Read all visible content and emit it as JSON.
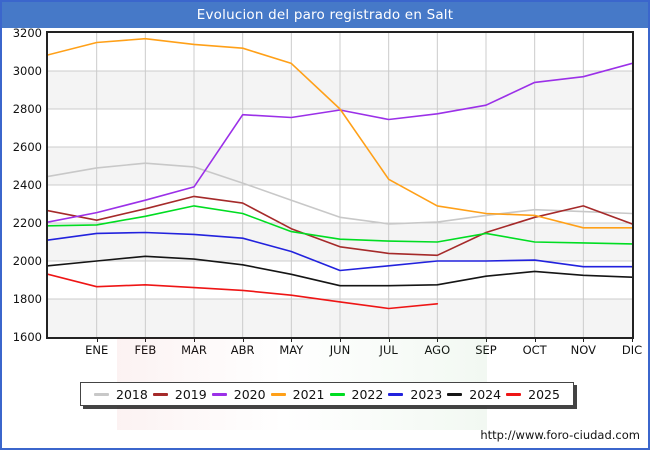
{
  "title": "Evolucion del paro registrado en Salt",
  "footer_url": "http://www.foro-ciudad.com",
  "colors": {
    "header_bg": "#4679c8",
    "frame_border": "#3b66cc",
    "plot_border": "#222222",
    "grid": "#cccccc",
    "band": "#f4f4f4",
    "axis_text": "#111111"
  },
  "chart_data": {
    "type": "line",
    "title": "Evolucion del paro registrado en Salt",
    "xlabel": "",
    "ylabel": "",
    "ylim": [
      1600,
      3200
    ],
    "grid": true,
    "legend_position": "bottom",
    "y_ticks": [
      3200,
      3000,
      2800,
      2600,
      2400,
      2200,
      2000,
      1800,
      1600
    ],
    "x_tick_labels": [
      "ENE",
      "FEB",
      "MAR",
      "ABR",
      "MAY",
      "JUN",
      "JUL",
      "AGO",
      "SEP",
      "OCT",
      "NOV",
      "DIC"
    ],
    "x_axis_note": "first value of each series is drawn at the left plot edge, following values at each month tick",
    "series": [
      {
        "name": "2018",
        "color": "#c8c8c8",
        "values": [
          2445,
          2490,
          2515,
          2495,
          2410,
          2320,
          2230,
          2195,
          2205,
          2240,
          2270,
          2260,
          2250
        ]
      },
      {
        "name": "2019",
        "color": "#a52a2a",
        "values": [
          2265,
          2215,
          2275,
          2340,
          2305,
          2170,
          2075,
          2040,
          2030,
          2150,
          2230,
          2290,
          2195
        ]
      },
      {
        "name": "2020",
        "color": "#9b30e8",
        "values": [
          2205,
          2255,
          2320,
          2390,
          2770,
          2755,
          2795,
          2745,
          2775,
          2820,
          2940,
          2970,
          3040
        ]
      },
      {
        "name": "2021",
        "color": "#ffa018",
        "values": [
          3085,
          3150,
          3170,
          3140,
          3120,
          3040,
          2800,
          2430,
          2290,
          2250,
          2240,
          2175,
          2175
        ]
      },
      {
        "name": "2022",
        "color": "#00dd22",
        "values": [
          2185,
          2190,
          2235,
          2290,
          2250,
          2155,
          2115,
          2105,
          2100,
          2145,
          2100,
          2095,
          2090
        ]
      },
      {
        "name": "2023",
        "color": "#2222dd",
        "values": [
          2110,
          2145,
          2150,
          2140,
          2120,
          2050,
          1950,
          1975,
          2000,
          2000,
          2005,
          1970,
          1970
        ]
      },
      {
        "name": "2024",
        "color": "#151515",
        "values": [
          1975,
          2000,
          2025,
          2010,
          1980,
          1930,
          1870,
          1870,
          1875,
          1920,
          1945,
          1925,
          1915
        ]
      },
      {
        "name": "2025",
        "color": "#ee1515",
        "values": [
          1930,
          1865,
          1875,
          1860,
          1845,
          1820,
          1785,
          1750,
          1775
        ]
      }
    ]
  }
}
